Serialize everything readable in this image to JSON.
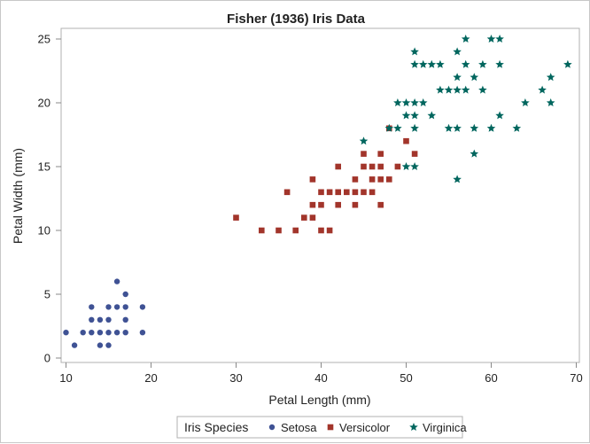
{
  "chart_data": {
    "type": "scatter",
    "title": "Fisher (1936) Iris Data",
    "xlabel": "Petal Length (mm)",
    "ylabel": "Petal Width (mm)",
    "xlim": [
      9,
      71
    ],
    "ylim": [
      -0.4,
      26
    ],
    "xticks": [
      10,
      20,
      30,
      40,
      50,
      60,
      70
    ],
    "yticks": [
      0,
      5,
      10,
      15,
      20,
      25
    ],
    "grid": false,
    "legend": {
      "title": "Iris Species",
      "placement": "bottom"
    },
    "series": [
      {
        "name": "Setosa",
        "marker": "circle",
        "color": "#3F5294",
        "points": [
          [
            16,
            6
          ],
          [
            17,
            5
          ],
          [
            13,
            4
          ],
          [
            15,
            4
          ],
          [
            16,
            4
          ],
          [
            17,
            4
          ],
          [
            19,
            4
          ],
          [
            13,
            3
          ],
          [
            14,
            3
          ],
          [
            15,
            3
          ],
          [
            17,
            3
          ],
          [
            10,
            2
          ],
          [
            12,
            2
          ],
          [
            13,
            2
          ],
          [
            14,
            2
          ],
          [
            15,
            2
          ],
          [
            16,
            2
          ],
          [
            17,
            2
          ],
          [
            19,
            2
          ],
          [
            11,
            1
          ],
          [
            14,
            1
          ],
          [
            15,
            1
          ]
        ]
      },
      {
        "name": "Versicolor",
        "marker": "square",
        "color": "#A2352B",
        "points": [
          [
            33,
            10
          ],
          [
            35,
            10
          ],
          [
            37,
            10
          ],
          [
            40,
            10
          ],
          [
            41,
            10
          ],
          [
            30,
            11
          ],
          [
            38,
            11
          ],
          [
            39,
            11
          ],
          [
            39,
            12
          ],
          [
            40,
            12
          ],
          [
            42,
            12
          ],
          [
            44,
            12
          ],
          [
            47,
            12
          ],
          [
            36,
            13
          ],
          [
            40,
            13
          ],
          [
            41,
            13
          ],
          [
            42,
            13
          ],
          [
            43,
            13
          ],
          [
            44,
            13
          ],
          [
            45,
            13
          ],
          [
            46,
            13
          ],
          [
            39,
            14
          ],
          [
            44,
            14
          ],
          [
            46,
            14
          ],
          [
            47,
            14
          ],
          [
            48,
            14
          ],
          [
            42,
            15
          ],
          [
            45,
            15
          ],
          [
            46,
            15
          ],
          [
            47,
            15
          ],
          [
            49,
            15
          ],
          [
            45,
            16
          ],
          [
            47,
            16
          ],
          [
            51,
            16
          ],
          [
            50,
            17
          ],
          [
            48,
            18
          ]
        ]
      },
      {
        "name": "Virginica",
        "marker": "star",
        "color": "#01665E",
        "points": [
          [
            57,
            25
          ],
          [
            60,
            25
          ],
          [
            61,
            25
          ],
          [
            51,
            24
          ],
          [
            56,
            24
          ],
          [
            51,
            23
          ],
          [
            52,
            23
          ],
          [
            53,
            23
          ],
          [
            54,
            23
          ],
          [
            57,
            23
          ],
          [
            59,
            23
          ],
          [
            61,
            23
          ],
          [
            69,
            23
          ],
          [
            56,
            22
          ],
          [
            58,
            22
          ],
          [
            67,
            22
          ],
          [
            54,
            21
          ],
          [
            55,
            21
          ],
          [
            56,
            21
          ],
          [
            57,
            21
          ],
          [
            59,
            21
          ],
          [
            66,
            21
          ],
          [
            49,
            20
          ],
          [
            50,
            20
          ],
          [
            51,
            20
          ],
          [
            52,
            20
          ],
          [
            64,
            20
          ],
          [
            67,
            20
          ],
          [
            50,
            19
          ],
          [
            51,
            19
          ],
          [
            53,
            19
          ],
          [
            61,
            19
          ],
          [
            48,
            18
          ],
          [
            49,
            18
          ],
          [
            51,
            18
          ],
          [
            55,
            18
          ],
          [
            56,
            18
          ],
          [
            58,
            18
          ],
          [
            60,
            18
          ],
          [
            63,
            18
          ],
          [
            45,
            17
          ],
          [
            58,
            16
          ],
          [
            50,
            15
          ],
          [
            51,
            15
          ],
          [
            56,
            14
          ]
        ]
      }
    ]
  }
}
